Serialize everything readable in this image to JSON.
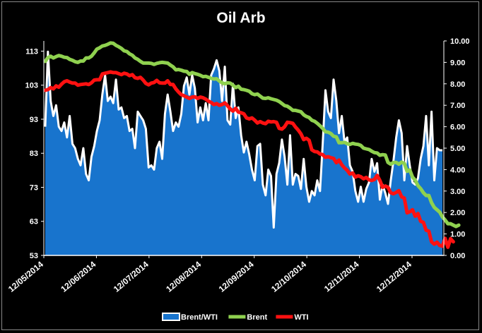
{
  "chart_data": {
    "type": "area",
    "title": "Oil Arb",
    "x_labels": [
      "12/05/2014",
      "12/06/2014",
      "12/07/2014",
      "12/08/2014",
      "12/09/2014",
      "12/10/2014",
      "12/11/2014",
      "12/12/2014"
    ],
    "y_left": {
      "ticks": [
        "53",
        "63",
        "73",
        "83",
        "93",
        "103",
        "113"
      ],
      "range": [
        53,
        116
      ]
    },
    "y_right": {
      "ticks": [
        "0.00",
        "1.00",
        "2.00",
        "3.00",
        "4.00",
        "5.00",
        "6.00",
        "7.00",
        "8.00",
        "9.00",
        "10.00"
      ],
      "range": [
        0,
        10
      ]
    },
    "series": [
      {
        "name": "Brent/WTI",
        "axis": "right",
        "color": "#1874CD",
        "outline": "#FFFFFF",
        "values": [
          6.0,
          9.5,
          7.2,
          6.5,
          7.0,
          6.0,
          5.8,
          6.2,
          5.5,
          6.5,
          5.2,
          5.0,
          4.5,
          4.2,
          5.0,
          3.8,
          3.5,
          4.6,
          5.1,
          5.8,
          6.3,
          7.5,
          8.4,
          7.2,
          7.4,
          7.1,
          8.2,
          6.8,
          6.9,
          6.4,
          6.5,
          5.8,
          5.9,
          5.0,
          6.7,
          6.5,
          6.3,
          5.9,
          4.1,
          4.2,
          4.0,
          5.0,
          5.3,
          4.5,
          6.6,
          7.5,
          6.7,
          5.8,
          6.2,
          6.0,
          6.6,
          7.9,
          8.3,
          7.5,
          8.4,
          7.8,
          6.2,
          6.9,
          6.3,
          7.1,
          6.3,
          8.4,
          8.7,
          9.1,
          8.6,
          7.2,
          8.8,
          6.3,
          6.1,
          8.0,
          6.4,
          6.9,
          5.6,
          4.8,
          5.3,
          4.7,
          4.0,
          3.5,
          5.1,
          5.2,
          3.3,
          2.8,
          4.0,
          3.7,
          1.3,
          3.8,
          4.3,
          5.4,
          4.6,
          3.3,
          5.6,
          3.3,
          3.8,
          3.7,
          3.1,
          4.5,
          3.2,
          2.5,
          3.0,
          2.8,
          3.5,
          3.0,
          5.2,
          7.7,
          6.7,
          6.4,
          8.2,
          7.2,
          5.7,
          6.5,
          5.3,
          5.5,
          4.2,
          3.9,
          3.0,
          2.5,
          3.2,
          2.5,
          3.1,
          3.4,
          4.5,
          3.9,
          4.3,
          2.6,
          3.3,
          2.9,
          2.4,
          3.5,
          4.4,
          5.5,
          6.3,
          5.7,
          3.5,
          5.1,
          4.2,
          3.4,
          3.3,
          3.6,
          4.5,
          5.1,
          6.5,
          4.2,
          6.7,
          3.5,
          5.0,
          4.9,
          4.9
        ]
      },
      {
        "name": "Brent",
        "axis": "left",
        "color": "#8FD14F",
        "values": [
          110.0,
          111.1,
          111.5,
          111.0,
          111.4,
          111.7,
          111.5,
          111.2,
          111.1,
          110.6,
          110.3,
          109.9,
          109.7,
          110.1,
          110.1,
          111.0,
          111.0,
          111.5,
          112.5,
          113.6,
          114.0,
          114.5,
          114.7,
          115.0,
          115.4,
          115.3,
          114.7,
          114.3,
          113.8,
          113.1,
          112.9,
          112.2,
          111.8,
          111.0,
          110.6,
          110.0,
          109.5,
          109.5,
          109.5,
          109.4,
          109.1,
          109.4,
          109.6,
          109.7,
          109.6,
          109.5,
          108.9,
          108.4,
          107.5,
          107.6,
          107.4,
          107.1,
          107.0,
          106.2,
          106.7,
          106.4,
          106.2,
          105.9,
          105.5,
          105.6,
          105.3,
          105.0,
          104.8,
          104.9,
          104.2,
          103.7,
          103.4,
          103.7,
          103.6,
          103.0,
          102.3,
          102.7,
          101.8,
          101.7,
          101.5,
          101.2,
          100.5,
          100.2,
          100.4,
          99.8,
          99.2,
          99.1,
          99.3,
          99.0,
          98.8,
          98.6,
          98.2,
          97.6,
          97.0,
          96.8,
          96.3,
          95.6,
          95.6,
          95.4,
          95.2,
          94.3,
          93.8,
          93.5,
          92.7,
          92.4,
          91.8,
          91.1,
          90.3,
          89.3,
          89.2,
          88.8,
          88.0,
          87.8,
          86.1,
          86.1,
          86.2,
          85.8,
          85.6,
          85.9,
          85.7,
          85.6,
          85.3,
          84.5,
          84.3,
          84.1,
          83.6,
          83.2,
          83.1,
          82.4,
          82.6,
          82.5,
          80.3,
          79.8,
          80.3,
          80.3,
          79.8,
          80.4,
          80.0,
          77.7,
          78.1,
          76.0,
          75.1,
          73.5,
          72.6,
          71.4,
          70.6,
          70.6,
          68.5,
          67.1,
          66.4,
          65.7,
          64.3,
          63.4,
          62.3,
          62.3,
          61.9,
          61.5,
          61.9
        ]
      },
      {
        "name": "WTI",
        "axis": "left",
        "color": "#FF1111",
        "values": [
          101.5,
          101.7,
          102.3,
          101.9,
          102.8,
          102.4,
          103.3,
          104.0,
          104.3,
          103.9,
          103.6,
          103.6,
          103.0,
          103.2,
          103.3,
          103.4,
          103.2,
          103.7,
          104.5,
          104.6,
          104.6,
          106.3,
          106.5,
          106.7,
          106.9,
          106.7,
          106.7,
          106.4,
          106.1,
          106.5,
          106.3,
          105.8,
          106.1,
          105.2,
          105.0,
          105.3,
          104.5,
          103.5,
          103.1,
          103.6,
          103.8,
          104.4,
          103.7,
          103.6,
          103.6,
          104.3,
          103.2,
          103.2,
          101.9,
          101.0,
          100.2,
          99.9,
          99.5,
          99.1,
          99.5,
          99.6,
          99.1,
          99.5,
          99.3,
          98.9,
          98.3,
          97.9,
          97.3,
          97.6,
          97.1,
          97.3,
          97.8,
          97.0,
          96.0,
          95.4,
          96.2,
          95.1,
          94.9,
          94.6,
          93.4,
          93.1,
          93.4,
          92.7,
          91.9,
          92.3,
          91.9,
          91.7,
          92.4,
          92.2,
          92.3,
          92.1,
          90.3,
          90.1,
          90.8,
          92.1,
          92.0,
          91.8,
          90.7,
          89.8,
          88.7,
          87.0,
          87.4,
          86.8,
          84.0,
          83.5,
          83.4,
          82.8,
          82.6,
          81.8,
          82.0,
          81.7,
          81.5,
          80.2,
          81.0,
          79.6,
          78.7,
          78.0,
          76.9,
          77.2,
          76.0,
          76.4,
          76.1,
          75.5,
          75.9,
          75.2,
          75.0,
          75.3,
          76.5,
          75.0,
          73.0,
          73.4,
          73.0,
          71.4,
          71.1,
          71.5,
          72.0,
          70.2,
          69.8,
          65.5,
          65.8,
          66.4,
          64.5,
          65.3,
          63.0,
          62.7,
          60.4,
          60.1,
          57.0,
          56.3,
          56.9,
          55.9,
          55.7,
          58.0,
          55.4,
          57.9,
          57.0
        ]
      }
    ]
  }
}
